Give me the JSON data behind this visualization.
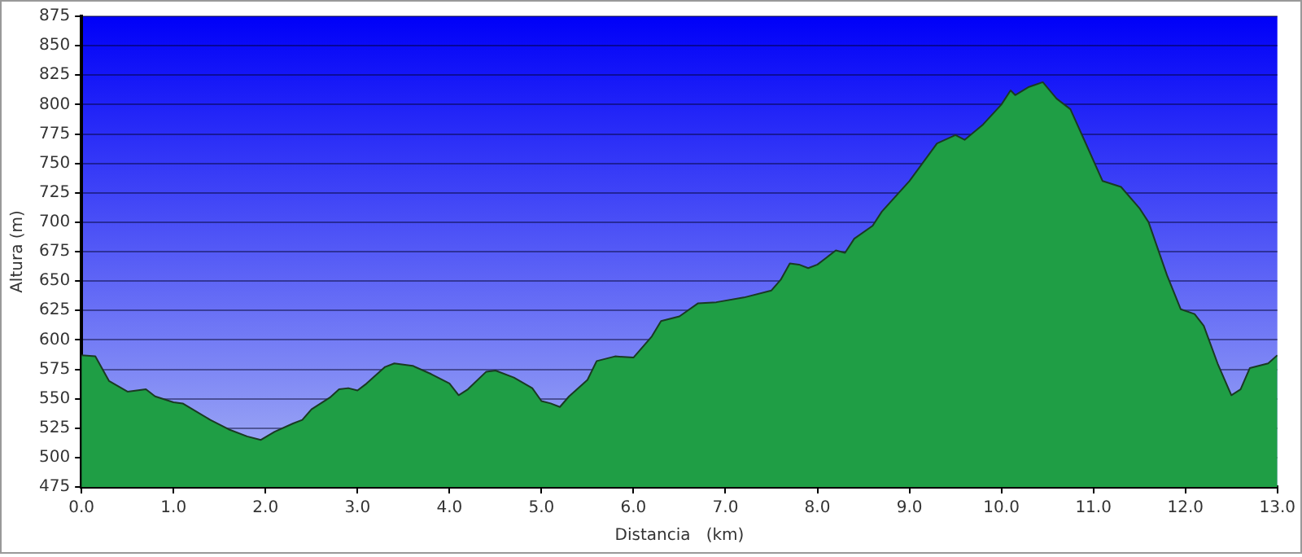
{
  "chart_data": {
    "type": "area",
    "xlabel": "Distancia   (km)",
    "ylabel": "Altura (m)",
    "grid": "y",
    "legend": false,
    "x": [
      0,
      0.15,
      0.3,
      0.5,
      0.7,
      0.8,
      1.0,
      1.1,
      1.4,
      1.6,
      1.8,
      1.95,
      2.1,
      2.3,
      2.4,
      2.5,
      2.7,
      2.8,
      2.9,
      3.0,
      3.1,
      3.3,
      3.4,
      3.6,
      3.8,
      4.0,
      4.1,
      4.2,
      4.4,
      4.5,
      4.7,
      4.9,
      5.0,
      5.1,
      5.2,
      5.3,
      5.5,
      5.6,
      5.8,
      6.0,
      6.2,
      6.3,
      6.5,
      6.7,
      6.9,
      7.2,
      7.5,
      7.6,
      7.7,
      7.8,
      7.9,
      8.0,
      8.1,
      8.2,
      8.3,
      8.4,
      8.6,
      8.7,
      9.0,
      9.3,
      9.5,
      9.6,
      9.8,
      10.0,
      10.1,
      10.15,
      10.3,
      10.45,
      10.6,
      10.75,
      10.9,
      11.1,
      11.3,
      11.5,
      11.6,
      11.8,
      11.95,
      12.1,
      12.2,
      12.35,
      12.5,
      12.6,
      12.7,
      12.9,
      13.0
    ],
    "series": [
      {
        "color": "#1f9e45",
        "values": [
          587,
          586,
          565,
          556,
          558,
          552,
          547,
          546,
          532,
          524,
          518,
          515,
          522,
          529,
          532,
          541,
          551,
          558,
          559,
          557,
          563,
          577,
          580,
          578,
          571,
          563,
          553,
          558,
          573,
          574,
          568,
          559,
          548,
          546,
          543,
          552,
          566,
          582,
          586,
          585,
          603,
          616,
          620,
          631,
          632,
          636,
          642,
          651,
          665,
          664,
          661,
          664,
          670,
          676,
          674,
          686,
          697,
          709,
          735,
          767,
          774,
          770,
          783,
          800,
          812,
          808,
          815,
          819,
          805,
          796,
          770,
          735,
          730,
          712,
          700,
          655,
          626,
          622,
          612,
          580,
          553,
          558,
          576,
          580,
          587
        ]
      }
    ],
    "xlim": [
      0,
      13
    ],
    "xticks": [
      {
        "value": 0,
        "label": "0.0"
      },
      {
        "value": 1,
        "label": "1.0"
      },
      {
        "value": 2,
        "label": "2.0"
      },
      {
        "value": 3,
        "label": "3.0"
      },
      {
        "value": 4,
        "label": "4.0"
      },
      {
        "value": 5,
        "label": "5.0"
      },
      {
        "value": 6,
        "label": "6.0"
      },
      {
        "value": 7,
        "label": "7.0"
      },
      {
        "value": 8,
        "label": "8.0"
      },
      {
        "value": 9,
        "label": "9.0"
      },
      {
        "value": 10,
        "label": "10.0"
      },
      {
        "value": 11,
        "label": "11.0"
      },
      {
        "value": 12,
        "label": "12.0"
      },
      {
        "value": 13,
        "label": "13.0"
      }
    ],
    "ylim": [
      475,
      875
    ],
    "yticks": [
      475,
      500,
      525,
      550,
      575,
      600,
      625,
      650,
      675,
      700,
      725,
      750,
      775,
      800,
      825,
      850,
      875
    ]
  }
}
